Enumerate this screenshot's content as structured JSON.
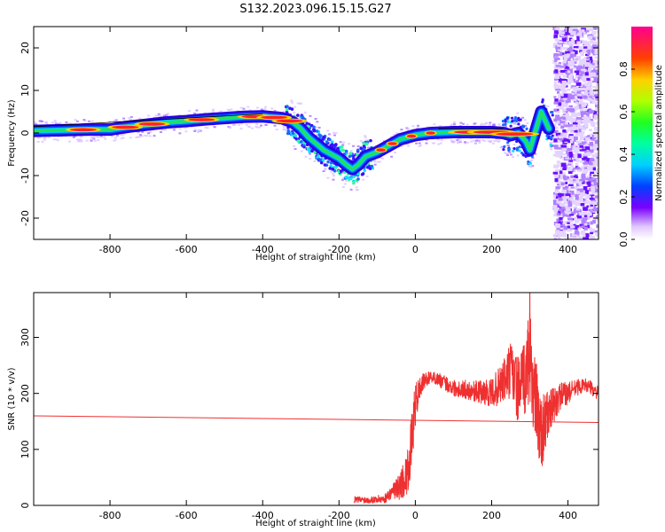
{
  "title": "S132.2023.096.15.15.G27",
  "chart_data": [
    {
      "type": "heatmap",
      "xlabel": "Height of straight line (km)",
      "ylabel": "Frequency (Hz)",
      "xlim": [
        -1000,
        480
      ],
      "ylim": [
        -25,
        25
      ],
      "xticks": [
        -800,
        -600,
        -400,
        -200,
        0,
        200,
        400
      ],
      "yticks": [
        -20,
        -10,
        0,
        10,
        20
      ],
      "colorbar": {
        "label": "Normalized spectral amplitude",
        "ticks": [
          "0.0",
          "0.2",
          "0.4",
          "0.6",
          "0.8"
        ],
        "tick_values": [
          0.0,
          0.2,
          0.4,
          0.6,
          0.8
        ],
        "range": [
          0,
          1
        ]
      },
      "ridge": {
        "x": [
          -1000,
          -900,
          -850,
          -800,
          -750,
          -700,
          -650,
          -600,
          -550,
          -500,
          -450,
          -400,
          -350,
          -320,
          -300,
          -280,
          -260,
          -240,
          -220,
          -200,
          -180,
          -165,
          -150,
          -130,
          -100,
          -70,
          -40,
          0,
          40,
          100,
          160,
          200,
          230,
          250,
          270,
          290,
          300,
          310,
          320,
          330,
          340,
          350
        ],
        "y": [
          0.5,
          0.7,
          0.8,
          0.8,
          1.5,
          2.0,
          2.5,
          2.8,
          3.2,
          3.5,
          3.8,
          3.9,
          3.5,
          2.5,
          1.0,
          -1.0,
          -2.5,
          -4.0,
          -5.0,
          -6.0,
          -7.5,
          -8.5,
          -7.5,
          -5.5,
          -4.5,
          -3.0,
          -1.5,
          -0.5,
          0.0,
          0.2,
          0.2,
          0.2,
          0.0,
          -0.5,
          0.0,
          -2.0,
          -4.0,
          -1.0,
          2.0,
          5.0,
          3.0,
          1.0
        ]
      },
      "noise_region_x": [
        360,
        480
      ]
    },
    {
      "type": "line",
      "xlabel": "Height of straight line (km)",
      "ylabel": "SNR (10 * v/v)",
      "xlim": [
        -1000,
        480
      ],
      "ylim": [
        0,
        380
      ],
      "xticks": [
        -800,
        -600,
        -400,
        -200,
        0,
        200,
        400
      ],
      "yticks": [
        0,
        100,
        200,
        300
      ],
      "color": "#ef3030",
      "reference_line": {
        "x": [
          -1000,
          480
        ],
        "y": [
          160,
          148
        ]
      },
      "series": {
        "x": [
          -160,
          -120,
          -80,
          -60,
          -40,
          -20,
          -10,
          0,
          10,
          20,
          40,
          60,
          100,
          150,
          200,
          230,
          250,
          270,
          290,
          300,
          310,
          330,
          350,
          380,
          400,
          420,
          450,
          480
        ],
        "y": [
          10,
          10,
          12,
          25,
          35,
          60,
          110,
          180,
          205,
          220,
          230,
          225,
          210,
          205,
          200,
          220,
          240,
          205,
          230,
          280,
          200,
          130,
          165,
          195,
          200,
          210,
          215,
          200
        ],
        "spread": [
          6,
          6,
          8,
          12,
          25,
          40,
          50,
          40,
          25,
          15,
          10,
          12,
          15,
          18,
          25,
          40,
          55,
          60,
          70,
          90,
          85,
          70,
          40,
          25,
          20,
          15,
          12,
          12
        ]
      },
      "spike": {
        "x": 300,
        "y": 380
      }
    }
  ]
}
